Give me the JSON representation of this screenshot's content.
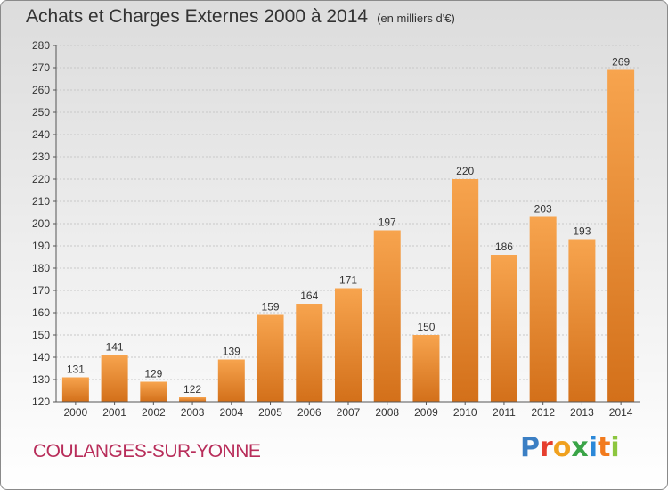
{
  "title": "Achats et Charges Externes 2000 à 2014",
  "subtitle": "(en milliers d'€)",
  "commune": "COULANGES-SUR-YONNE",
  "logo": {
    "text": "Proxiti",
    "colors": [
      "#3b7fc4",
      "#e63e2e",
      "#f0a11f",
      "#3aa447",
      "#2b88d8",
      "#f27b1e",
      "#8cc63f"
    ]
  },
  "colors": {
    "bar_light": "#f7a44e",
    "bar_dark": "#d3701a",
    "commune": "#b82d5a",
    "grid": "#c8c8c8"
  },
  "chart_data": {
    "type": "bar",
    "categories": [
      "2000",
      "2001",
      "2002",
      "2003",
      "2004",
      "2005",
      "2006",
      "2007",
      "2008",
      "2009",
      "2010",
      "2011",
      "2012",
      "2013",
      "2014"
    ],
    "values": [
      131,
      141,
      129,
      122,
      139,
      159,
      164,
      171,
      197,
      150,
      220,
      186,
      203,
      193,
      269
    ],
    "ylim": [
      120,
      280
    ],
    "yticks": [
      120,
      130,
      140,
      150,
      160,
      170,
      180,
      190,
      200,
      210,
      220,
      230,
      240,
      250,
      260,
      270,
      280
    ],
    "grid": true,
    "xlabel": "",
    "ylabel": ""
  }
}
